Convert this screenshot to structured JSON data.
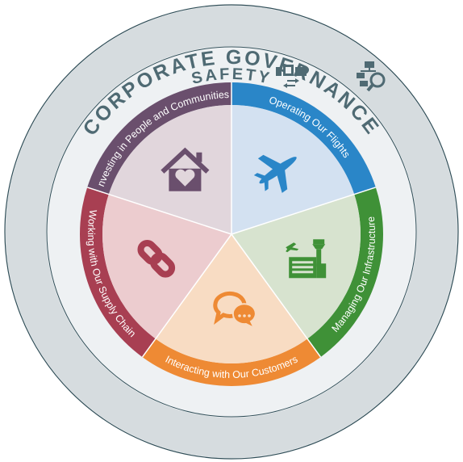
{
  "outer_ring": {
    "title": "CORPORATE GOVERNANCE",
    "icon": "org-chart-search-icon"
  },
  "inner_ring": {
    "title": "SAFETY",
    "icon": "process-flow-icon"
  },
  "segments": [
    {
      "label": "Operating Our Flights",
      "icon": "airplane-icon",
      "band_color": "#2a86c8",
      "fill_color": "#d3e1f1",
      "icon_color": "#2a86c8"
    },
    {
      "label": "Managing Our Infrastructure",
      "icon": "airport-tower-icon",
      "band_color": "#3f9137",
      "fill_color": "#d7e3cf",
      "icon_color": "#3f9137"
    },
    {
      "label": "Interacting with Our Customers",
      "icon": "chat-bubbles-icon",
      "band_color": "#ee8a34",
      "fill_color": "#f8dcc3",
      "icon_color": "#ee8a34"
    },
    {
      "label": "Working with Our Supply Chain",
      "icon": "chain-link-icon",
      "band_color": "#a83f52",
      "fill_color": "#eccccf",
      "icon_color": "#a83f52"
    },
    {
      "label": "Investing in People and Communities",
      "icon": "house-heart-icon",
      "band_color": "#6a4f6d",
      "fill_color": "#e1d6dc",
      "icon_color": "#6a4f6d"
    }
  ]
}
